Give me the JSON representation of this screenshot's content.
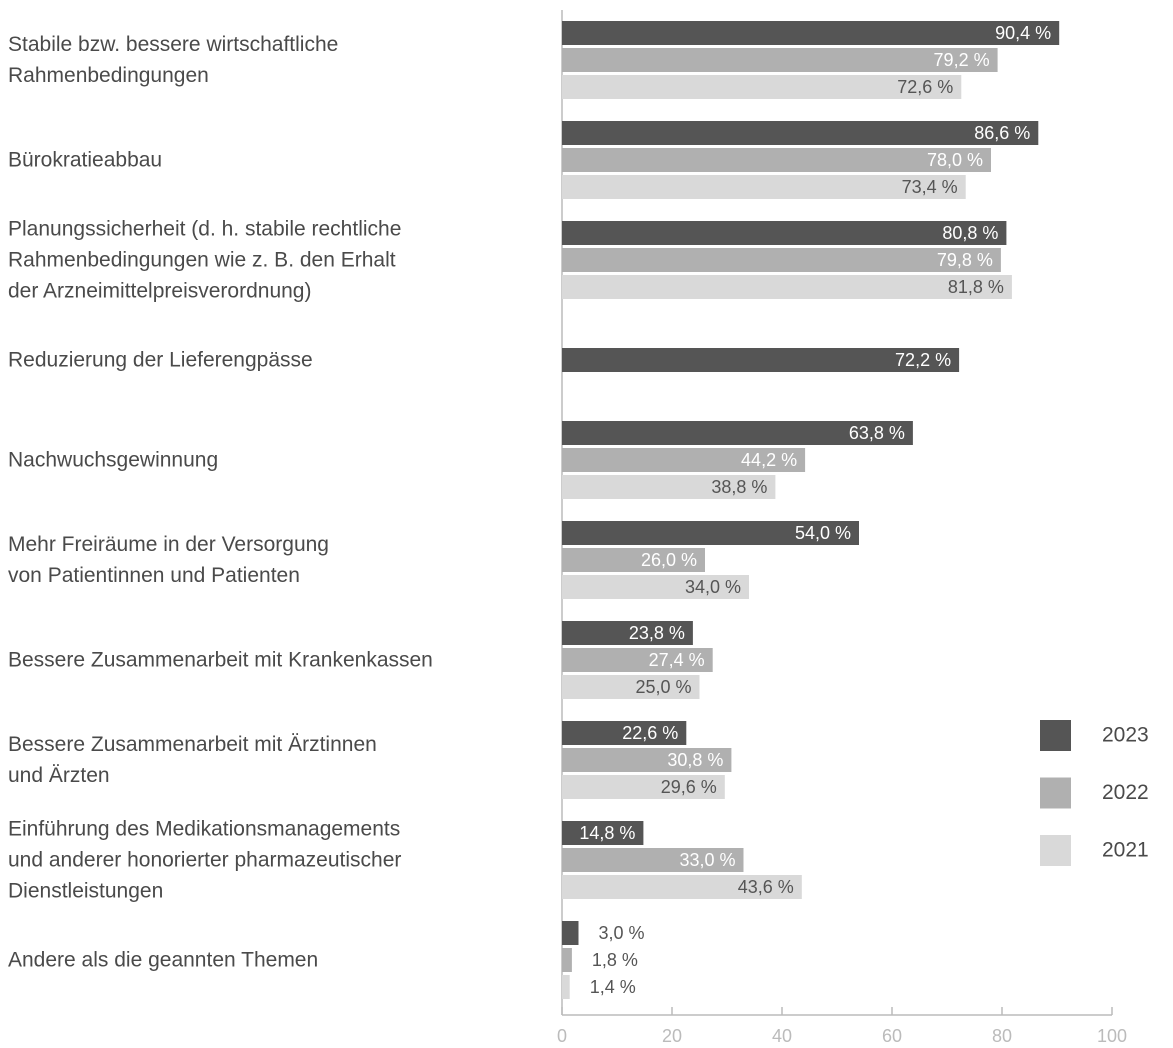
{
  "chart_data": {
    "type": "hbar",
    "categories": [
      "Stabile bzw. bessere wirtschaftliche\nRahmenbedingungen",
      "Bürokratieabbau",
      "Planungssicherheit (d. h. stabile rechtliche\nRahmenbedingungen wie z. B. den Erhalt\nder Arzneimittelpreisverordnung)",
      "Reduzierung der Lieferengpässe",
      "Nachwuchsgewinnung",
      "Mehr Freiräume in der Versorgung\nvon Patientinnen und Patienten",
      "Bessere Zusammenarbeit mit Krankenkassen",
      "Bessere Zusammenarbeit mit Ärztinnen\nund Ärzten",
      "Einführung des Medikationsmanagements\nund anderer honorierter pharmazeutischer\nDienstleistungen",
      "Andere als die geannten Themen"
    ],
    "series": [
      {
        "name": "2023",
        "color": "#555555",
        "label_color": "#ffffff",
        "values": [
          90.4,
          86.6,
          80.8,
          72.2,
          63.8,
          54.0,
          23.8,
          22.6,
          14.8,
          3.0
        ],
        "value_labels": [
          "90,4 %",
          "86,6 %",
          "80,8 %",
          "72,2 %",
          "63,8 %",
          "54,0 %",
          "23,8 %",
          "22,6 %",
          "14,8 %",
          "3,0 %"
        ]
      },
      {
        "name": "2022",
        "color": "#b0b0b0",
        "label_color": "#ffffff",
        "values": [
          79.2,
          78.0,
          79.8,
          null,
          44.2,
          26.0,
          27.4,
          30.8,
          33.0,
          1.8
        ],
        "value_labels": [
          "79,2 %",
          "78,0 %",
          "79,8 %",
          null,
          "44,2 %",
          "26,0 %",
          "27,4 %",
          "30,8 %",
          "33,0 %",
          "1,8 %"
        ]
      },
      {
        "name": "2021",
        "color": "#d9d9d9",
        "label_color": "#555555",
        "values": [
          72.6,
          73.4,
          81.8,
          null,
          38.8,
          34.0,
          25.0,
          29.6,
          43.6,
          1.4
        ],
        "value_labels": [
          "72,6 %",
          "73,4 %",
          "81,8 %",
          null,
          "38,8 %",
          "34,0 %",
          "25,0 %",
          "29,6 %",
          "43,6 %",
          "1,4 %"
        ]
      }
    ],
    "xlim": [
      0,
      100
    ],
    "xticks": [
      0,
      20,
      40,
      60,
      80,
      100
    ],
    "legend": "right"
  }
}
